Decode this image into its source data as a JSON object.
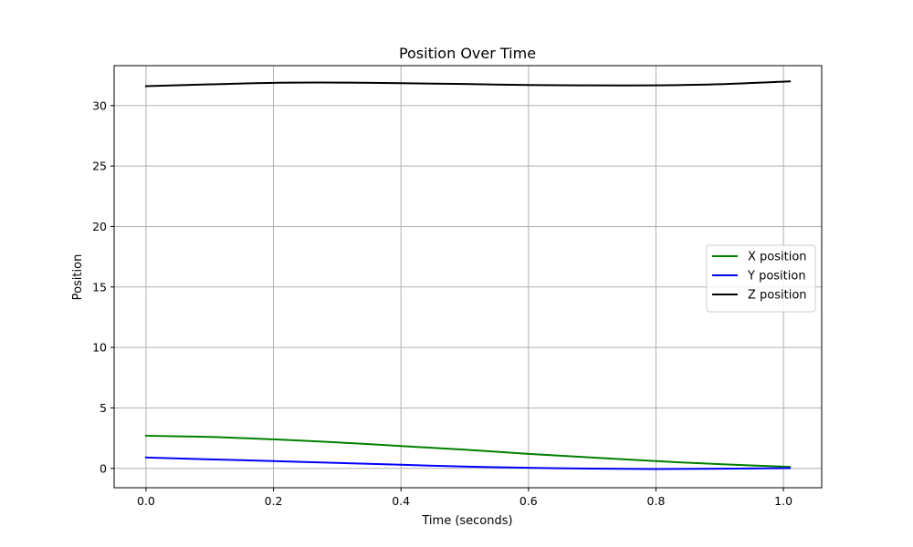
{
  "chart_data": {
    "type": "line",
    "title": "Position Over Time",
    "xlabel": "Time (seconds)",
    "ylabel": "Position",
    "xlim": [
      -0.05,
      1.06
    ],
    "ylim": [
      -1.6,
      33.3
    ],
    "xticks": [
      0.0,
      0.2,
      0.4,
      0.6,
      0.8,
      1.0
    ],
    "xtick_labels": [
      "0.0",
      "0.2",
      "0.4",
      "0.6",
      "0.8",
      "1.0"
    ],
    "yticks": [
      0,
      5,
      10,
      15,
      20,
      25,
      30
    ],
    "ytick_labels": [
      "0",
      "5",
      "10",
      "15",
      "20",
      "25",
      "30"
    ],
    "grid": true,
    "legend_position": "center-right",
    "x": [
      0.0,
      0.1,
      0.2,
      0.3,
      0.4,
      0.5,
      0.6,
      0.7,
      0.8,
      0.9,
      1.01
    ],
    "series": [
      {
        "name": "X position",
        "color": "#008000",
        "values": [
          2.7,
          2.6,
          2.4,
          2.15,
          1.85,
          1.55,
          1.2,
          0.9,
          0.6,
          0.35,
          0.12
        ]
      },
      {
        "name": "Y position",
        "color": "#0000ff",
        "values": [
          0.9,
          0.75,
          0.6,
          0.45,
          0.3,
          0.15,
          0.05,
          -0.02,
          -0.05,
          -0.03,
          0.02
        ]
      },
      {
        "name": "Z position",
        "color": "#000000",
        "values": [
          31.6,
          31.75,
          31.88,
          31.9,
          31.85,
          31.78,
          31.7,
          31.67,
          31.67,
          31.76,
          32.0
        ]
      }
    ]
  }
}
